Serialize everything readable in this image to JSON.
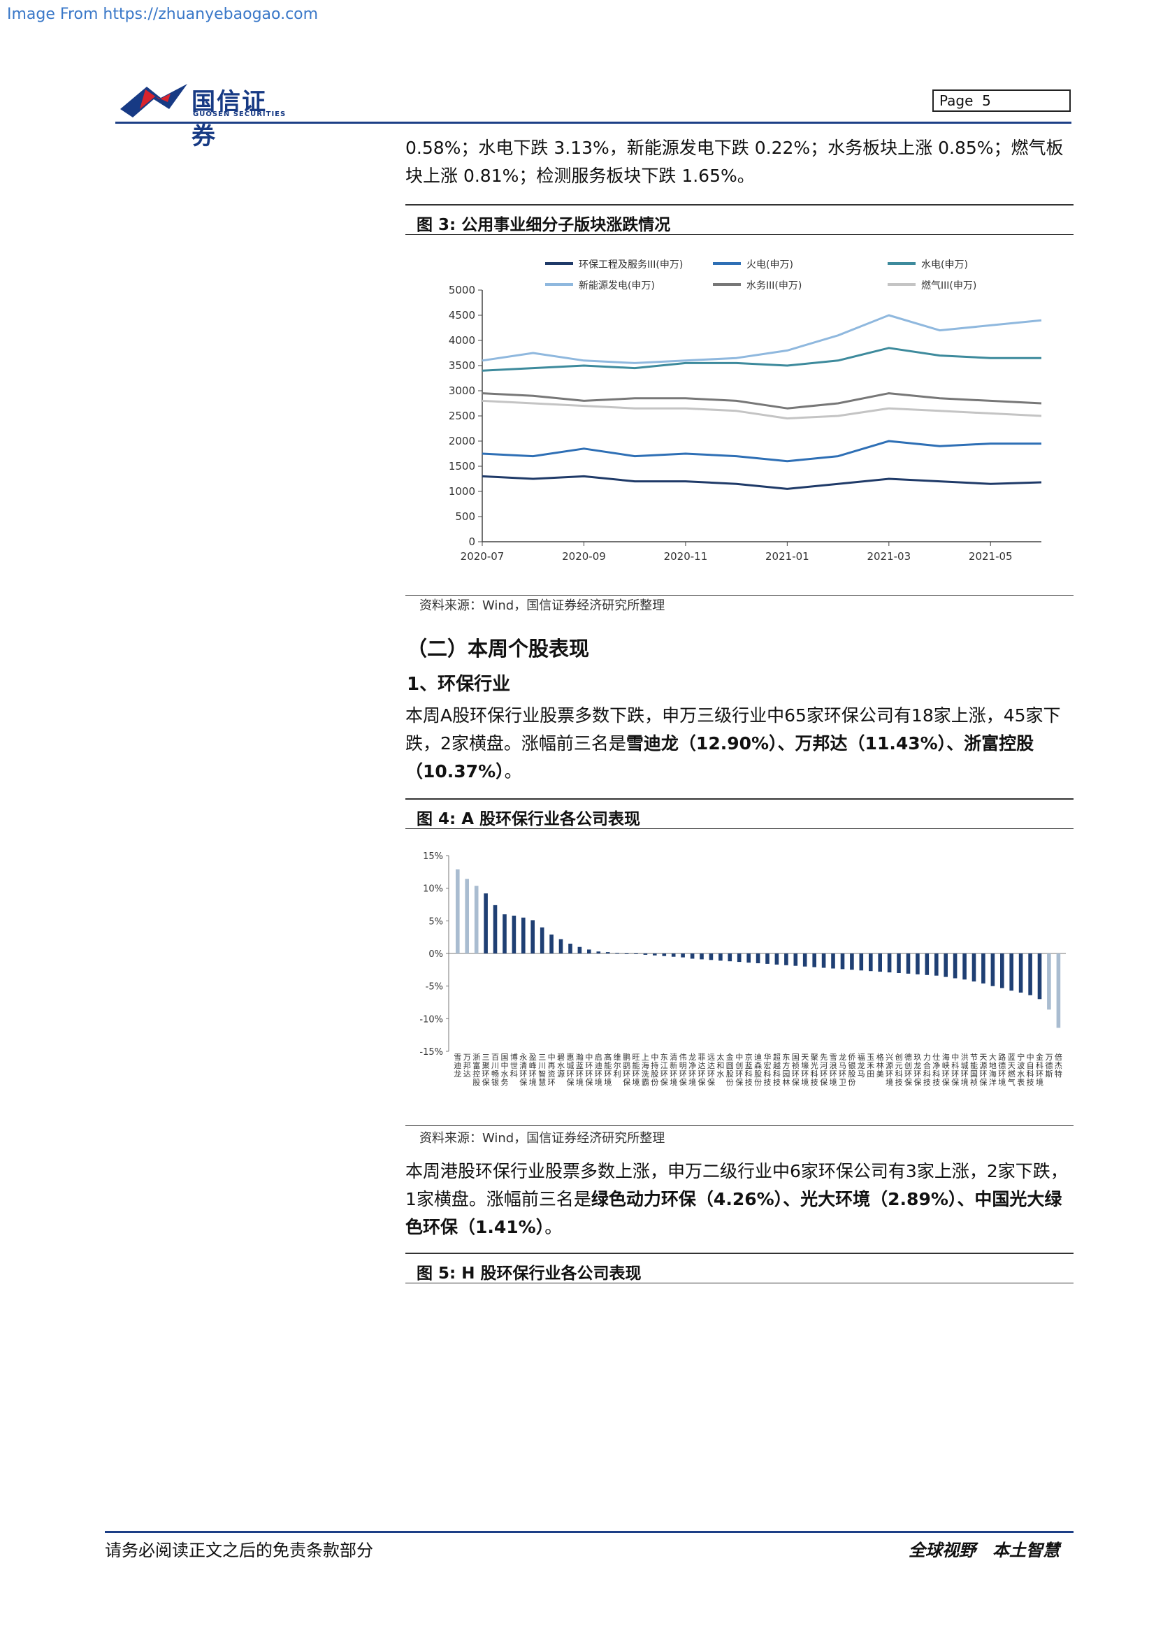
{
  "watermark": "Image From https://zhuanyebaogao.com",
  "header": {
    "logo_cn": "国信证券",
    "logo_en": "GUOSEN SECURITIES",
    "page_label": "Page",
    "page_num": "5"
  },
  "para1": "0.58%；水电下跌 3.13%，新能源发电下跌 0.22%；水务板块上涨 0.85%；燃气板块上涨 0.81%；检测服务板块下跌 1.65%。",
  "fig3": {
    "title": "图 3:  公用事业细分子版块涨跌情况",
    "source": "资料来源：Wind，国信证券经济研究所整理"
  },
  "section2_title": "（二）本周个股表现",
  "sub1_title": "1、环保行业",
  "para2": {
    "prefix": "本周A股环保行业股票多数下跌，申万三级行业中65家环保公司有18家上涨，45家下跌，2家横盘。涨幅前三名是",
    "s1": "雪迪龙（12.90%）、万邦达（11.43%）、浙富控股（10.37%）",
    "suffix": "。"
  },
  "fig4": {
    "title": "图 4:  A 股环保行业各公司表现",
    "source": "资料来源：Wind，国信证券经济研究所整理"
  },
  "para3": {
    "prefix": "本周港股环保行业股票多数上涨，申万二级行业中6家环保公司有3家上涨，2家下跌，1家横盘。涨幅前三名是",
    "s1": "绿色动力环保（4.26%）、光大环境（2.89%）、中国光大绿色环保（1.41%）",
    "suffix": "。"
  },
  "fig5": {
    "title": "图 5:  H 股环保行业各公司表现"
  },
  "footer": {
    "left": "请务必阅读正文之后的免责条款部分",
    "right": "全球视野　本土智慧"
  },
  "chart_data": [
    {
      "type": "line",
      "title": "公用事业细分子版块涨跌情况",
      "x": [
        "2020-07",
        "2020-08",
        "2020-09",
        "2020-10",
        "2020-11",
        "2020-12",
        "2021-01",
        "2021-02",
        "2021-03",
        "2021-04",
        "2021-05",
        "2021-06"
      ],
      "x_ticks": [
        "2020-07",
        "2020-09",
        "2020-11",
        "2021-01",
        "2021-03",
        "2021-05"
      ],
      "ylim": [
        0,
        5000
      ],
      "y_ticks": [
        "0",
        "500",
        "1000",
        "1500",
        "2000",
        "2500",
        "3000",
        "3500",
        "4000",
        "4500",
        "5000"
      ],
      "legend_position": "top",
      "series": [
        {
          "name": "环保工程及服务III(申万)",
          "color": "#1f3a68",
          "values": [
            1300,
            1250,
            1300,
            1200,
            1200,
            1150,
            1050,
            1150,
            1250,
            1200,
            1150,
            1180
          ]
        },
        {
          "name": "火电(申万)",
          "color": "#2e6fb5",
          "values": [
            1750,
            1700,
            1850,
            1700,
            1750,
            1700,
            1600,
            1700,
            2000,
            1900,
            1950,
            1950
          ]
        },
        {
          "name": "水电(申万)",
          "color": "#3d8a9c",
          "values": [
            3400,
            3450,
            3500,
            3450,
            3550,
            3550,
            3500,
            3600,
            3850,
            3700,
            3650,
            3650
          ]
        },
        {
          "name": "新能源发电(申万)",
          "color": "#8fb8de",
          "values": [
            3600,
            3750,
            3600,
            3550,
            3600,
            3650,
            3800,
            4100,
            4500,
            4200,
            4300,
            4400
          ]
        },
        {
          "name": "水务III(申万)",
          "color": "#777777",
          "values": [
            2950,
            2900,
            2800,
            2850,
            2850,
            2800,
            2650,
            2750,
            2950,
            2850,
            2800,
            2750
          ]
        },
        {
          "name": "燃气III(申万)",
          "color": "#c4c4c4",
          "values": [
            2800,
            2750,
            2700,
            2650,
            2650,
            2600,
            2450,
            2500,
            2650,
            2600,
            2550,
            2500
          ]
        }
      ]
    },
    {
      "type": "bar",
      "title": "A 股环保行业各公司表现",
      "ylim": [
        -15,
        15
      ],
      "y_ticks": [
        "15%",
        "10%",
        "5%",
        "0%",
        "-5%",
        "-10%",
        "-15%"
      ],
      "values": [
        12.9,
        11.43,
        10.37,
        9.2,
        7.4,
        6.0,
        5.8,
        5.5,
        5.1,
        4.0,
        2.9,
        2.2,
        1.5,
        1.0,
        0.6,
        0.3,
        0.2,
        0.1,
        0.0,
        0.0,
        -0.2,
        -0.3,
        -0.4,
        -0.5,
        -0.6,
        -0.8,
        -0.9,
        -1.0,
        -1.1,
        -1.2,
        -1.3,
        -1.4,
        -1.5,
        -1.6,
        -1.7,
        -1.8,
        -1.9,
        -2.0,
        -2.1,
        -2.2,
        -2.3,
        -2.4,
        -2.5,
        -2.6,
        -2.7,
        -2.8,
        -2.9,
        -3.0,
        -3.1,
        -3.2,
        -3.3,
        -3.4,
        -3.6,
        -3.8,
        -4.0,
        -4.3,
        -4.6,
        -5.0,
        -5.3,
        -5.7,
        -6.0,
        -6.4,
        -7.0,
        -8.6,
        -11.4
      ],
      "highlight_color": "#a9bcd0",
      "bar_color": "#1f3f73",
      "highlight_indices": [
        0,
        1,
        2,
        63,
        64
      ],
      "labels": [
        "雪迪龙",
        "万邦达",
        "浙富控股",
        "三聚环保",
        "百川畅银",
        "国中水务",
        "博世科",
        "永清环保",
        "盈峰环境",
        "三川智慧",
        "中再资环",
        "碧水源",
        "惠城环保",
        "瀚蓝环境",
        "中环环保",
        "启迪环境",
        "高能环境",
        "维尔利",
        "鹏鹞环保",
        "旺能环境",
        "上海洗霸",
        "中持股份",
        "东江环保",
        "清新环境",
        "伟明环保",
        "龙净环境",
        "菲达环保",
        "远达环保",
        "太和水",
        "金圆股份",
        "中创环保",
        "京蓝科技",
        "迪森股份",
        "华宏科技",
        "超越科技",
        "东方园林",
        "国祯环保",
        "天壕环境",
        "聚光科技",
        "先河环保",
        "雪浪环境",
        "龙马环卫",
        "侨银股份",
        "福龙马",
        "玉禾田",
        "格林美",
        "兴源环境",
        "创元科技",
        "德创环保",
        "玖龙环保",
        "力合科技",
        "仕净科技",
        "海峡环保",
        "中科环保",
        "洪城环境",
        "节能国祯",
        "天源环保",
        "大地海洋",
        "路德环境",
        "蓝天燃气",
        "宁波水表",
        "中自科技",
        "金科环境",
        "万德斯",
        "倍杰特"
      ]
    }
  ]
}
